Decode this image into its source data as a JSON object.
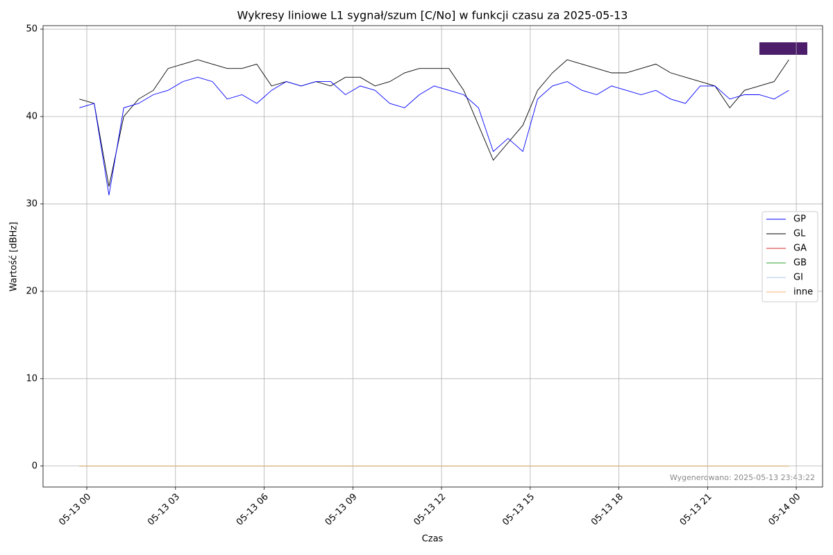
{
  "chart_data": {
    "type": "line",
    "title": "Wykresy liniowe L1 sygnał/szum [C/No] w funkcji czasu za 2025-05-13",
    "x_label": "Czas",
    "y_label": "Wartość [dBHz]",
    "annotation": "Wygenerowano: 2025-05-13 23:43:22",
    "x": [
      -0.25,
      0.25,
      0.75,
      1.25,
      1.75,
      2.25,
      2.75,
      3.25,
      3.75,
      4.25,
      4.75,
      5.25,
      5.75,
      6.25,
      6.75,
      7.25,
      7.75,
      8.25,
      8.75,
      9.25,
      9.75,
      10.25,
      10.75,
      11.25,
      11.75,
      12.25,
      12.75,
      13.25,
      13.75,
      14.25,
      14.75,
      15.25,
      15.75,
      16.25,
      16.75,
      17.25,
      17.75,
      18.25,
      18.75,
      19.25,
      19.75,
      20.25,
      20.75,
      21.25,
      21.75,
      22.25,
      22.75,
      23.25,
      23.75
    ],
    "series": [
      {
        "name": "GP",
        "color": "#0000ff",
        "values": [
          41,
          41.5,
          31,
          41,
          41.5,
          42.5,
          43,
          44,
          44.5,
          44,
          42,
          42.5,
          41.5,
          43,
          44,
          43.5,
          44,
          44,
          42.5,
          43.5,
          43,
          41.5,
          41,
          42.5,
          43.5,
          43,
          42.5,
          41,
          36,
          37.5,
          36,
          42,
          43.5,
          44,
          43,
          42.5,
          43.5,
          43,
          42.5,
          43,
          42,
          41.5,
          43.5,
          43.5,
          42,
          42.5,
          42.5,
          42,
          43
        ]
      },
      {
        "name": "GL",
        "color": "#000000",
        "values": [
          42,
          41.5,
          32,
          40,
          42,
          43,
          45.5,
          46,
          46.5,
          46,
          45.5,
          45.5,
          46,
          43.5,
          44,
          43.5,
          44,
          43.5,
          44.5,
          44.5,
          43.5,
          44,
          45,
          45.5,
          45.5,
          45.5,
          43,
          39,
          35,
          37,
          39,
          43,
          45,
          46.5,
          46,
          45.5,
          45,
          45,
          45.5,
          46,
          45,
          44.5,
          44,
          43.5,
          41,
          43,
          43.5,
          44,
          46.5
        ]
      },
      {
        "name": "GA",
        "color": "#d62728",
        "values": [
          0,
          0,
          0,
          0,
          0,
          0,
          0,
          0,
          0,
          0,
          0,
          0,
          0,
          0,
          0,
          0,
          0,
          0,
          0,
          0,
          0,
          0,
          0,
          0,
          0,
          0,
          0,
          0,
          0,
          0,
          0,
          0,
          0,
          0,
          0,
          0,
          0,
          0,
          0,
          0,
          0,
          0,
          0,
          0,
          0,
          0,
          0,
          0,
          0
        ]
      },
      {
        "name": "GB",
        "color": "#2ca02c",
        "values": [
          0,
          0,
          0,
          0,
          0,
          0,
          0,
          0,
          0,
          0,
          0,
          0,
          0,
          0,
          0,
          0,
          0,
          0,
          0,
          0,
          0,
          0,
          0,
          0,
          0,
          0,
          0,
          0,
          0,
          0,
          0,
          0,
          0,
          0,
          0,
          0,
          0,
          0,
          0,
          0,
          0,
          0,
          0,
          0,
          0,
          0,
          0,
          0,
          0
        ]
      },
      {
        "name": "GI",
        "color": "#aec7e8",
        "values": [
          0,
          0,
          0,
          0,
          0,
          0,
          0,
          0,
          0,
          0,
          0,
          0,
          0,
          0,
          0,
          0,
          0,
          0,
          0,
          0,
          0,
          0,
          0,
          0,
          0,
          0,
          0,
          0,
          0,
          0,
          0,
          0,
          0,
          0,
          0,
          0,
          0,
          0,
          0,
          0,
          0,
          0,
          0,
          0,
          0,
          0,
          0,
          0,
          0
        ]
      },
      {
        "name": "inne",
        "color": "#ffbb78",
        "values": [
          0,
          0,
          0,
          0,
          0,
          0,
          0,
          0,
          0,
          0,
          0,
          0,
          0,
          0,
          0,
          0,
          0,
          0,
          0,
          0,
          0,
          0,
          0,
          0,
          0,
          0,
          0,
          0,
          0,
          0,
          0,
          0,
          0,
          0,
          0,
          0,
          0,
          0,
          0,
          0,
          0,
          0,
          0,
          0,
          0,
          0,
          0,
          0,
          0
        ]
      }
    ],
    "xlim": [
      -1.48,
      24.89
    ],
    "ylim": [
      -2.4,
      50.4
    ],
    "xticks": [
      {
        "value": 0,
        "label": "05-13 00"
      },
      {
        "value": 3,
        "label": "05-13 03"
      },
      {
        "value": 6,
        "label": "05-13 06"
      },
      {
        "value": 9,
        "label": "05-13 09"
      },
      {
        "value": 12,
        "label": "05-13 12"
      },
      {
        "value": 15,
        "label": "05-13 15"
      },
      {
        "value": 18,
        "label": "05-13 18"
      },
      {
        "value": 21,
        "label": "05-13 21"
      },
      {
        "value": 24,
        "label": "05-14 00"
      }
    ],
    "yticks": [
      0,
      10,
      20,
      30,
      40,
      50
    ],
    "grid": true,
    "legend": "right"
  }
}
